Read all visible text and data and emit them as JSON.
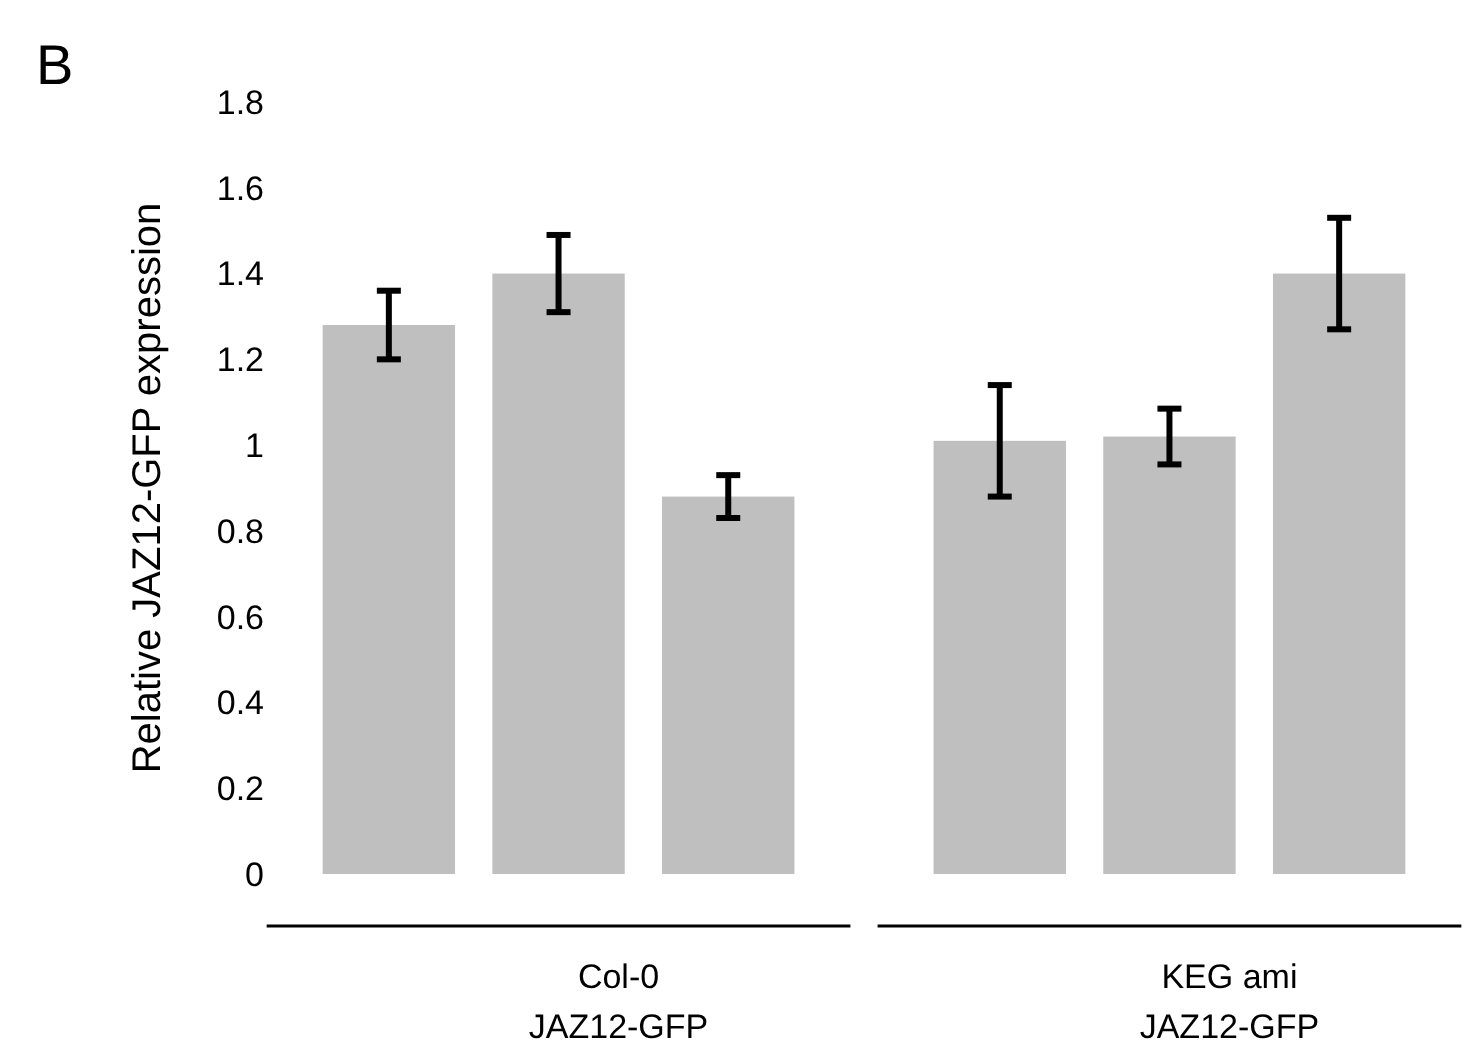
{
  "chart_data": {
    "type": "bar",
    "ylabel": "Relative JAZ12-GFP expression",
    "categories": [
      null,
      null,
      null,
      null,
      null,
      null
    ],
    "values": [
      1.28,
      1.4,
      0.88,
      1.01,
      1.02,
      1.4
    ],
    "errors": [
      0.08,
      0.09,
      0.05,
      0.13,
      0.065,
      0.13
    ],
    "color": "#bfbfbf",
    "ylim": [
      0,
      1.8
    ],
    "yticks": [
      0,
      {
        "value": 0.2,
        "label": "0.2"
      },
      {
        "value": 0.4,
        "label": "0.4"
      },
      {
        "value": 0.6,
        "label": "0.6"
      },
      {
        "value": 0.8,
        "label": "0.8"
      },
      1,
      {
        "value": 1.2,
        "label": "1.2"
      },
      {
        "value": 1.4,
        "label": "1.4"
      },
      {
        "value": 1.6,
        "label": "1.6"
      },
      {
        "value": 1.8,
        "label": "1.8"
      }
    ],
    "grid": false,
    "annotations": [
      "B",
      "Col-0\nJAZ12-GFP",
      "KEG ami\nJAZ12-GFP"
    ]
  }
}
